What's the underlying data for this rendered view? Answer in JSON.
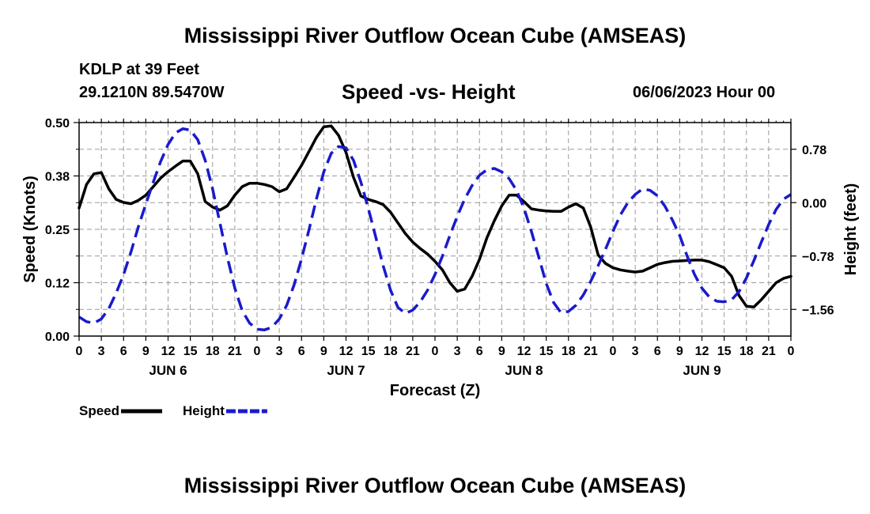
{
  "header": {
    "title": "Mississippi River Outflow Ocean Cube (AMSEAS)",
    "station": "KDLP at 39 Feet",
    "coords": "29.1210N  89.5470W",
    "subtitle": "Speed -vs- Height",
    "datetime": "06/06/2023 Hour 00"
  },
  "footer": {
    "title": "Mississippi River Outflow Ocean Cube (AMSEAS)"
  },
  "chart_data": {
    "type": "line",
    "title": "Speed -vs- Height",
    "xlabel": "Forecast (Z)",
    "ylabel": "Speed (Knots)",
    "y2label": "Height (feet)",
    "xlim": [
      0,
      96
    ],
    "ylim": [
      0,
      0.5
    ],
    "y2lim": [
      -1.95,
      1.17
    ],
    "grid": true,
    "x_tick_labels": [
      "0",
      "3",
      "6",
      "9",
      "12",
      "15",
      "18",
      "21",
      "0",
      "3",
      "6",
      "9",
      "12",
      "15",
      "18",
      "21",
      "0",
      "3",
      "6",
      "9",
      "12",
      "15",
      "18",
      "21",
      "0",
      "3",
      "6",
      "9",
      "12",
      "15",
      "18",
      "21",
      "0"
    ],
    "day_labels": [
      {
        "label": "JUN 6",
        "hour": 12
      },
      {
        "label": "JUN 7",
        "hour": 36
      },
      {
        "label": "JUN 8",
        "hour": 60
      },
      {
        "label": "JUN 9",
        "hour": 84
      }
    ],
    "y_ticks": [
      {
        "value": 0.0,
        "label": "0.00"
      },
      {
        "value": 0.125,
        "label": "0.12"
      },
      {
        "value": 0.25,
        "label": "0.25"
      },
      {
        "value": 0.375,
        "label": "0.38"
      },
      {
        "value": 0.5,
        "label": "0.50"
      }
    ],
    "y2_ticks": [
      {
        "value": 0.78,
        "label": "0.78"
      },
      {
        "value": 0.0,
        "label": "0.00"
      },
      {
        "value": -0.78,
        "label": "−0.78"
      },
      {
        "value": -1.56,
        "label": "−1.56"
      }
    ],
    "legend": [
      {
        "name": "Speed",
        "color": "#000000",
        "style": "solid"
      },
      {
        "name": "Height",
        "color": "#1a1acc",
        "style": "dashed"
      }
    ],
    "series": [
      {
        "name": "Speed",
        "axis": "left",
        "color": "#000000",
        "style": "solid",
        "x": [
          0,
          1,
          2,
          3,
          4,
          5,
          6,
          7,
          8,
          9,
          10,
          11,
          12,
          13,
          14,
          15,
          16,
          17,
          18,
          19,
          20,
          21,
          22,
          23,
          24,
          25,
          26,
          27,
          28,
          29,
          30,
          31,
          32,
          33,
          34,
          35,
          36,
          37,
          38,
          39,
          40,
          41,
          42,
          43,
          44,
          45,
          46,
          47,
          48,
          49,
          50,
          51,
          52,
          53,
          54,
          55,
          56,
          57,
          58,
          59,
          60,
          61,
          62,
          63,
          64,
          65,
          66,
          67,
          68,
          69,
          70,
          71,
          72,
          73,
          74,
          75,
          76,
          77,
          78,
          79,
          80,
          81,
          82,
          83,
          84,
          85,
          86,
          87,
          88,
          89,
          90,
          91,
          92,
          93,
          94,
          95,
          96
        ],
        "values": [
          0.3,
          0.355,
          0.38,
          0.383,
          0.345,
          0.32,
          0.313,
          0.31,
          0.318,
          0.33,
          0.35,
          0.37,
          0.385,
          0.398,
          0.41,
          0.41,
          0.38,
          0.315,
          0.302,
          0.295,
          0.305,
          0.33,
          0.35,
          0.358,
          0.358,
          0.355,
          0.35,
          0.338,
          0.345,
          0.372,
          0.4,
          0.432,
          0.465,
          0.49,
          0.492,
          0.47,
          0.43,
          0.372,
          0.328,
          0.32,
          0.315,
          0.308,
          0.29,
          0.265,
          0.24,
          0.22,
          0.205,
          0.192,
          0.175,
          0.155,
          0.125,
          0.105,
          0.11,
          0.14,
          0.18,
          0.23,
          0.27,
          0.305,
          0.33,
          0.33,
          0.315,
          0.298,
          0.295,
          0.293,
          0.292,
          0.292,
          0.302,
          0.31,
          0.3,
          0.255,
          0.19,
          0.17,
          0.16,
          0.155,
          0.152,
          0.15,
          0.152,
          0.16,
          0.168,
          0.172,
          0.175,
          0.176,
          0.177,
          0.178,
          0.178,
          0.174,
          0.167,
          0.16,
          0.14,
          0.095,
          0.07,
          0.068,
          0.085,
          0.105,
          0.125,
          0.135,
          0.14
        ]
      },
      {
        "name": "Height",
        "axis": "right",
        "color": "#1a1acc",
        "style": "dashed",
        "x": [
          0,
          1,
          2,
          3,
          4,
          5,
          6,
          7,
          8,
          9,
          10,
          11,
          12,
          13,
          14,
          15,
          16,
          17,
          18,
          19,
          20,
          21,
          22,
          23,
          24,
          25,
          26,
          27,
          28,
          29,
          30,
          31,
          32,
          33,
          34,
          35,
          36,
          37,
          38,
          39,
          40,
          41,
          42,
          43,
          44,
          45,
          46,
          47,
          48,
          49,
          50,
          51,
          52,
          53,
          54,
          55,
          56,
          57,
          58,
          59,
          60,
          61,
          62,
          63,
          64,
          65,
          66,
          67,
          68,
          69,
          70,
          71,
          72,
          73,
          74,
          75,
          76,
          77,
          78,
          79,
          80,
          81,
          82,
          83,
          84,
          85,
          86,
          87,
          88,
          89,
          90,
          91,
          92,
          93,
          94,
          95,
          96
        ],
        "values": [
          -1.67,
          -1.74,
          -1.76,
          -1.7,
          -1.55,
          -1.32,
          -1.05,
          -0.72,
          -0.35,
          -0.02,
          0.3,
          0.6,
          0.85,
          1.02,
          1.08,
          1.06,
          0.92,
          0.62,
          0.2,
          -0.3,
          -0.8,
          -1.25,
          -1.58,
          -1.76,
          -1.85,
          -1.86,
          -1.82,
          -1.7,
          -1.5,
          -1.2,
          -0.82,
          -0.4,
          0.05,
          0.45,
          0.72,
          0.82,
          0.8,
          0.62,
          0.3,
          -0.08,
          -0.5,
          -0.92,
          -1.28,
          -1.53,
          -1.62,
          -1.57,
          -1.45,
          -1.28,
          -1.05,
          -0.78,
          -0.48,
          -0.2,
          0.05,
          0.25,
          0.4,
          0.48,
          0.5,
          0.45,
          0.35,
          0.18,
          -0.08,
          -0.42,
          -0.8,
          -1.18,
          -1.46,
          -1.61,
          -1.59,
          -1.5,
          -1.35,
          -1.15,
          -0.92,
          -0.68,
          -0.42,
          -0.18,
          0.0,
          0.12,
          0.2,
          0.18,
          0.1,
          -0.05,
          -0.25,
          -0.48,
          -0.78,
          -1.05,
          -1.25,
          -1.38,
          -1.44,
          -1.45,
          -1.42,
          -1.3,
          -1.1,
          -0.85,
          -0.58,
          -0.32,
          -0.1,
          0.05,
          0.12
        ]
      }
    ]
  }
}
